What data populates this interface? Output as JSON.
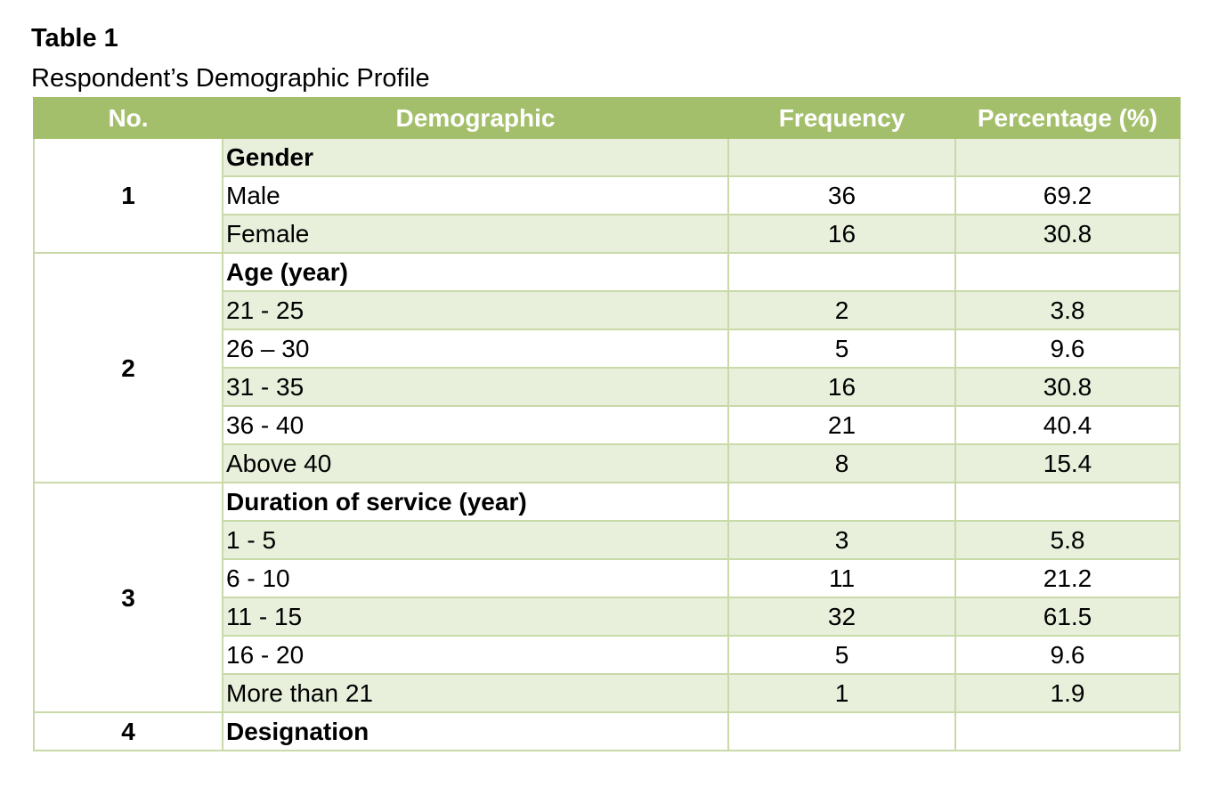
{
  "caption": {
    "title": "Table 1",
    "subtitle": "Respondent’s Demographic Profile"
  },
  "table": {
    "headers": [
      "No.",
      "Demographic",
      "Frequency",
      "Percentage (%)"
    ],
    "groups": [
      {
        "no": "1",
        "label": "Gender",
        "rows": [
          {
            "demographic": "Male",
            "frequency": "36",
            "percentage": "69.2"
          },
          {
            "demographic": "Female",
            "frequency": "16",
            "percentage": "30.8"
          }
        ]
      },
      {
        "no": "2",
        "label": "Age (year)",
        "rows": [
          {
            "demographic": "21 - 25",
            "frequency": "2",
            "percentage": "3.8"
          },
          {
            "demographic": "26 – 30",
            "frequency": "5",
            "percentage": "9.6"
          },
          {
            "demographic": "31 - 35",
            "frequency": "16",
            "percentage": "30.8"
          },
          {
            "demographic": "36 - 40",
            "frequency": "21",
            "percentage": "40.4"
          },
          {
            "demographic": "Above 40",
            "frequency": "8",
            "percentage": "15.4"
          }
        ]
      },
      {
        "no": "3",
        "label": "Duration of service (year)",
        "rows": [
          {
            "demographic": "1 - 5",
            "frequency": "3",
            "percentage": "5.8"
          },
          {
            "demographic": "6 - 10",
            "frequency": "11",
            "percentage": "21.2"
          },
          {
            "demographic": "11 - 15",
            "frequency": "32",
            "percentage": "61.5"
          },
          {
            "demographic": "16 - 20",
            "frequency": "5",
            "percentage": "9.6"
          },
          {
            "demographic": "More than 21",
            "frequency": "1",
            "percentage": "1.9"
          }
        ]
      },
      {
        "no": "4",
        "label": "Designation",
        "rows": []
      }
    ]
  },
  "colors": {
    "header_bg": "#a4bf6c",
    "header_text": "#ffffff",
    "stripe_bg": "#e8f0dc",
    "border": "#c9d9a8"
  }
}
